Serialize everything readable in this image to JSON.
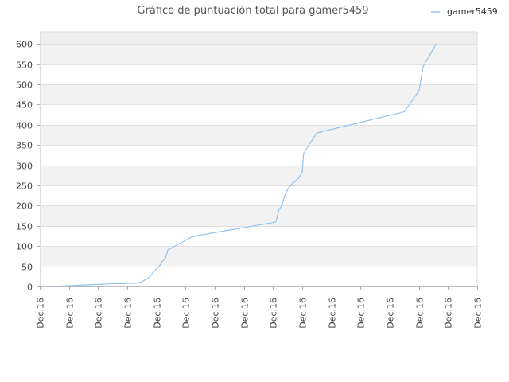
{
  "chart_data": {
    "type": "line",
    "title": "Gráfico de puntuación total para gamer5459",
    "xlabel": "",
    "ylabel": "",
    "ylim": [
      0,
      630
    ],
    "yticks": [
      0,
      50,
      100,
      150,
      200,
      250,
      300,
      350,
      400,
      450,
      500,
      550,
      600
    ],
    "xtick_labels": [
      "Dec.16",
      "Dec.16",
      "Dec.16",
      "Dec.16",
      "Dec.16",
      "Dec.16",
      "Dec.16",
      "Dec.16",
      "Dec.16",
      "Dec.16",
      "Dec.16",
      "Dec.16",
      "Dec.16",
      "Dec.16",
      "Dec.16",
      "Dec.16"
    ],
    "grid": true,
    "legend_position": "top-right",
    "series": [
      {
        "name": "gamer5459",
        "color": "#90c4f0",
        "points": [
          [
            0.5,
            0
          ],
          [
            1.0,
            2
          ],
          [
            1.3,
            3
          ],
          [
            1.9,
            5
          ],
          [
            2.6,
            7
          ],
          [
            2.9,
            7
          ],
          [
            3.1,
            8
          ],
          [
            3.3,
            8
          ],
          [
            3.5,
            12
          ],
          [
            3.7,
            20
          ],
          [
            3.8,
            26
          ],
          [
            3.9,
            36
          ],
          [
            4.1,
            50
          ],
          [
            4.2,
            62
          ],
          [
            4.3,
            68
          ],
          [
            4.4,
            91
          ],
          [
            5.2,
            122
          ],
          [
            5.4,
            126
          ],
          [
            8.0,
            158
          ],
          [
            8.1,
            160
          ],
          [
            8.2,
            190
          ],
          [
            8.3,
            200
          ],
          [
            8.4,
            225
          ],
          [
            8.5,
            240
          ],
          [
            8.6,
            250
          ],
          [
            8.9,
            270
          ],
          [
            9.0,
            283
          ],
          [
            9.05,
            330
          ],
          [
            9.5,
            380
          ],
          [
            12.5,
            432
          ],
          [
            13.0,
            484
          ],
          [
            13.15,
            545
          ],
          [
            13.6,
            601
          ]
        ]
      }
    ]
  }
}
